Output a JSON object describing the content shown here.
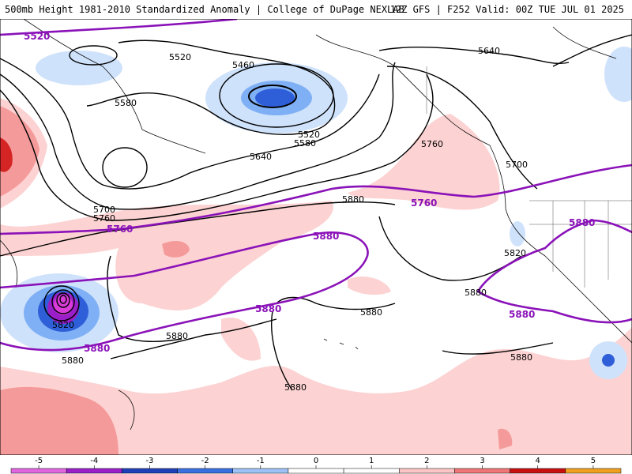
{
  "header": {
    "title_left": "500mb Height 1981-2010 Standardized Anomaly | College of DuPage NEXLAB",
    "title_right": "12Z GFS | F252 Valid: 00Z TUE JUL 01 2025"
  },
  "colors": {
    "contour_black": "#000000",
    "contour_purple": "#8a12b8",
    "pos1": "#fcd2d2",
    "pos2": "#f59a9a",
    "pos3": "#d42424",
    "neg1": "#cfe2fb",
    "neg2": "#7fb0f5",
    "neg3": "#2f5fd8",
    "neg5": "#d93cd9"
  },
  "contour_labels": {
    "black": [
      "5520",
      "5460",
      "5580",
      "5520",
      "5580",
      "5640",
      "5700",
      "5760",
      "5640",
      "5760",
      "5700",
      "5880",
      "5820",
      "5880",
      "5820",
      "5880",
      "5880",
      "5880",
      "5880",
      "5880"
    ],
    "purple": [
      "5520",
      "5760",
      "5880",
      "5760",
      "5880",
      "5880",
      "5880",
      "5880"
    ]
  },
  "legend": {
    "ticks": [
      "-5",
      "-4",
      "-3",
      "-2",
      "-1",
      "0",
      "1",
      "2",
      "3",
      "4",
      "5"
    ],
    "colors": [
      "#e066e0",
      "#9b1fc9",
      "#1f3fb8",
      "#3a6fe0",
      "#9ec2f5",
      "#ffffff",
      "#ffffff",
      "#fbc5c5",
      "#ef7676",
      "#c81010",
      "#f0a020"
    ]
  }
}
